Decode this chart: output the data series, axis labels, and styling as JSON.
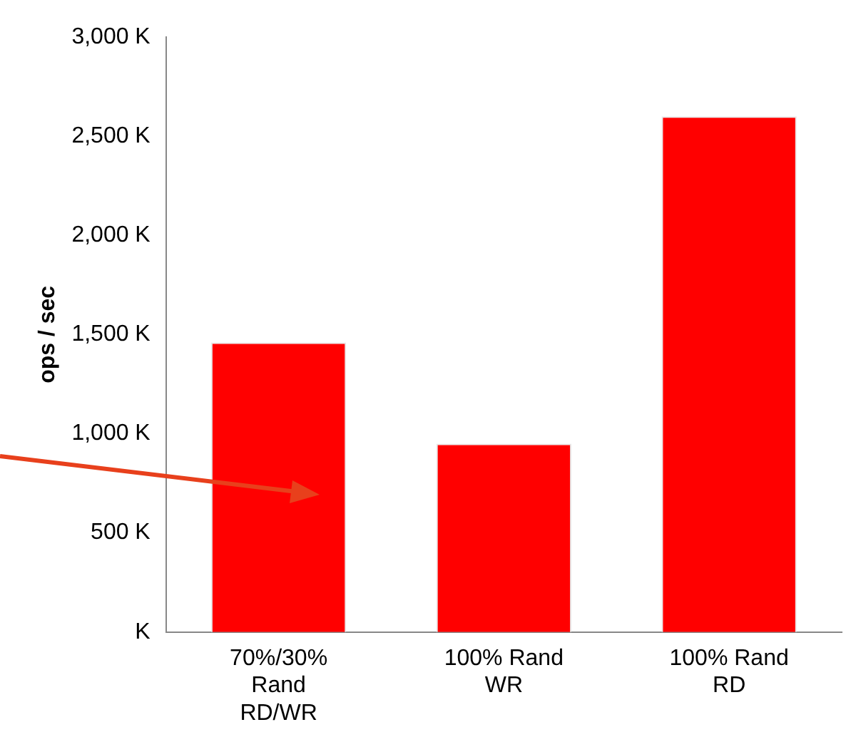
{
  "chart_data": {
    "type": "bar",
    "ylabel": "ops / sec",
    "categories": [
      "70%/30% Rand RD/WR",
      "100% Rand WR",
      "100% Rand RD"
    ],
    "values": [
      1460,
      950,
      2600
    ],
    "color": "#ff0000",
    "ylim": [
      0,
      3000
    ],
    "yticks": [
      {
        "value": 0,
        "label": "K"
      },
      {
        "value": 500,
        "label": "500 K"
      },
      {
        "value": 1000,
        "label": "1,000 K"
      },
      {
        "value": 1500,
        "label": "1,500 K"
      },
      {
        "value": 2000,
        "label": "2,000 K"
      },
      {
        "value": 2500,
        "label": "2,500 K"
      },
      {
        "value": 3000,
        "label": "3,000 K"
      }
    ],
    "grid": false,
    "legend": false
  }
}
